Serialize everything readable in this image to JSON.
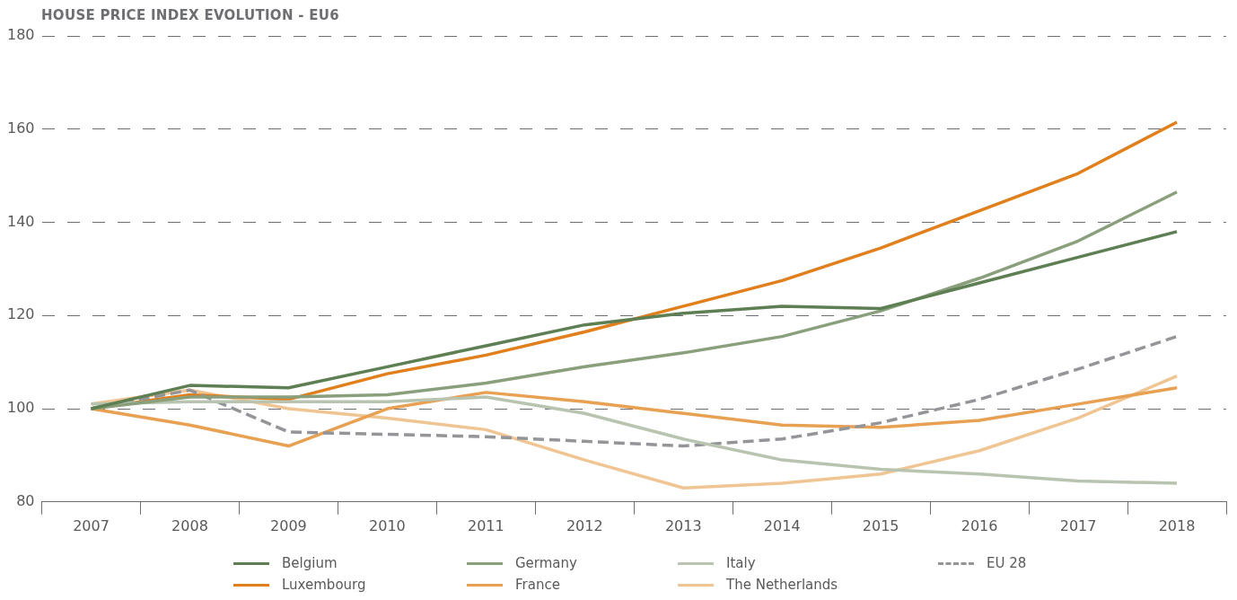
{
  "chart_data": {
    "type": "line",
    "title": "HOUSE PRICE INDEX EVOLUTION - EU6",
    "categories": [
      "2007",
      "2008",
      "2009",
      "2010",
      "2011",
      "2012",
      "2013",
      "2014",
      "2015",
      "2016",
      "2017",
      "2018"
    ],
    "series": [
      {
        "name": "Belgium",
        "color": "#5e7f53",
        "values": [
          100,
          105,
          104.5,
          109,
          113.5,
          118,
          120.5,
          122,
          121.5,
          127,
          132.5,
          138
        ]
      },
      {
        "name": "Germany",
        "color": "#8a9f7c",
        "values": [
          100,
          102.5,
          102.5,
          103,
          105.5,
          109,
          112,
          115.5,
          121,
          128,
          136,
          146.5
        ]
      },
      {
        "name": "Italy",
        "color": "#b9c4b0",
        "values": [
          101,
          101.5,
          101.5,
          101.5,
          102.5,
          99,
          93.5,
          89,
          87,
          86,
          84.5,
          84
        ]
      },
      {
        "name": "EU 28",
        "color": "#939598",
        "line_style": "dashed",
        "values": [
          100,
          104,
          95,
          94.5,
          94,
          93,
          92,
          93.5,
          97,
          102,
          108.5,
          115.5
        ]
      },
      {
        "name": "Luxembourg",
        "color": "#e07f1c",
        "values": [
          100,
          103,
          102,
          107.5,
          111.5,
          116.5,
          122,
          127.5,
          134.5,
          142.5,
          150.5,
          161.5
        ]
      },
      {
        "name": "France",
        "color": "#e8a052",
        "values": [
          100,
          96.5,
          92,
          100,
          103.5,
          101.5,
          99,
          96.5,
          96,
          97.5,
          101,
          104.5
        ]
      },
      {
        "name": "The Netherlands",
        "color": "#f0c594",
        "values": [
          101,
          104,
          100,
          98,
          95.5,
          89,
          83,
          84,
          86,
          91,
          98,
          107
        ]
      }
    ],
    "ylim": [
      80,
      180
    ],
    "yticks": [
      80,
      100,
      120,
      140,
      160,
      180
    ],
    "grid": "y",
    "legend": "bottom",
    "line_style": "solid",
    "marker": "none"
  }
}
